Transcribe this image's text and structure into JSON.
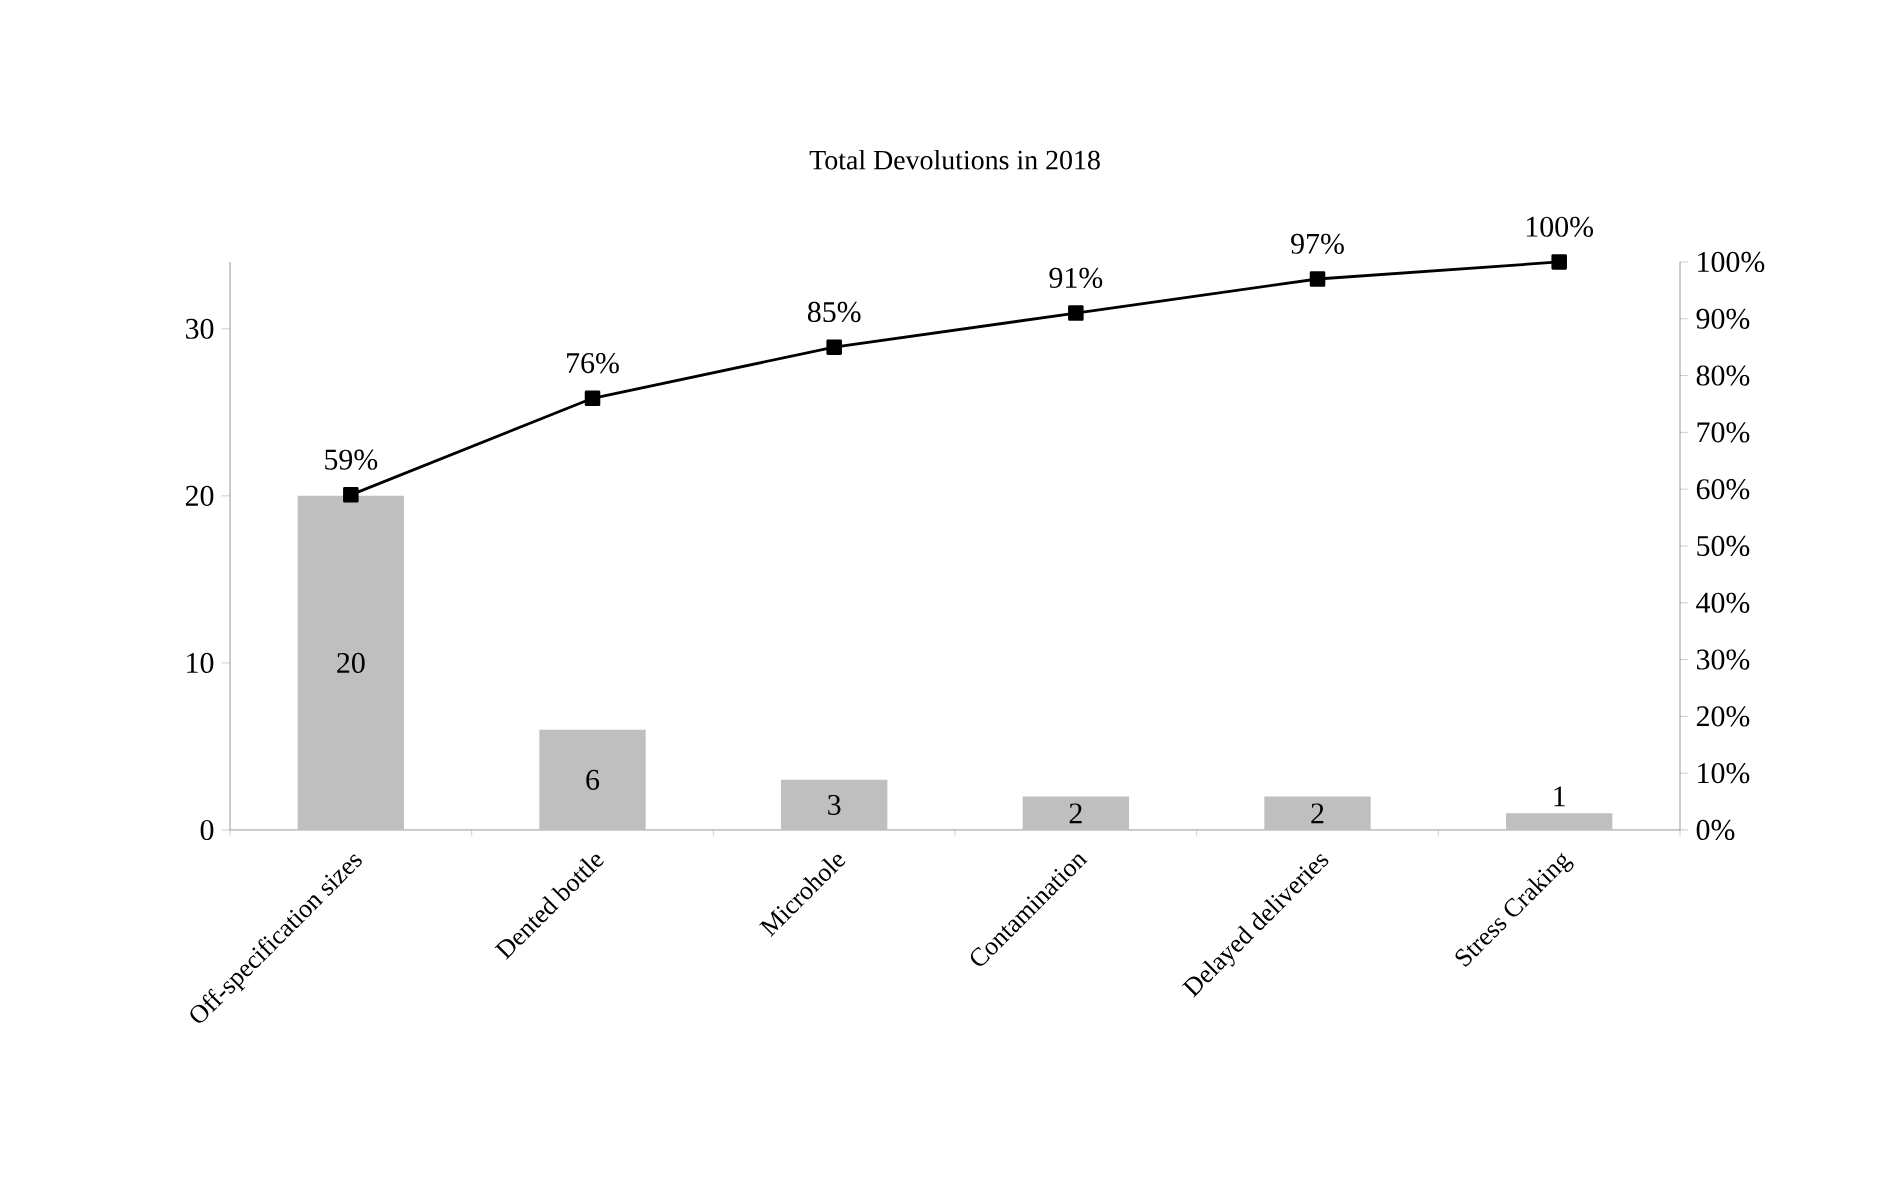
{
  "chart_data": {
    "type": "bar",
    "title": "Total Devolutions in 2018",
    "categories": [
      "Off-specification sizes",
      "Dented bottle",
      "Microhole",
      "Contamination",
      "Delayed deliveries",
      "Stress Craking"
    ],
    "series": [
      {
        "color": "#bfbfbf",
        "values": [
          20,
          6,
          3,
          2,
          2,
          1
        ],
        "value_labels": [
          "20",
          "6",
          "3",
          "2",
          "2",
          "1"
        ]
      },
      {
        "type": "line",
        "axis": "y2",
        "color": "#000000",
        "marker": "square",
        "values": [
          59,
          76,
          85,
          91,
          97,
          100
        ],
        "value_labels": [
          "59%",
          "76%",
          "85%",
          "91%",
          "97%",
          "100%"
        ]
      }
    ],
    "ylim": [
      0,
      34
    ],
    "yticks": [
      0,
      10,
      20,
      30
    ],
    "y2lim": [
      0,
      100
    ],
    "y2ticks": [
      {
        "value": 0,
        "label": "0%"
      },
      {
        "value": 10,
        "label": "10%"
      },
      {
        "value": 20,
        "label": "20%"
      },
      {
        "value": 30,
        "label": "30%"
      },
      {
        "value": 40,
        "label": "40%"
      },
      {
        "value": 50,
        "label": "50%"
      },
      {
        "value": 60,
        "label": "60%"
      },
      {
        "value": 70,
        "label": "70%"
      },
      {
        "value": 80,
        "label": "80%"
      },
      {
        "value": 90,
        "label": "90%"
      },
      {
        "value": 100,
        "label": "100%"
      }
    ]
  }
}
